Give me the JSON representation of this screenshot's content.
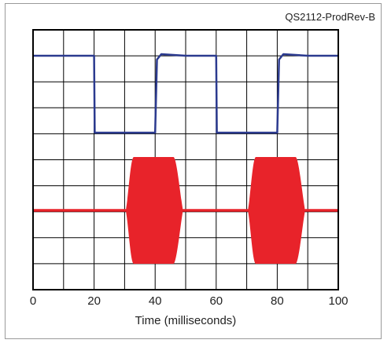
{
  "figure_id": "QS2112-ProdRev-B",
  "chart_data": {
    "type": "line",
    "title": "",
    "xlabel": "Time (milliseconds)",
    "ylabel": "",
    "xlim": [
      0,
      100
    ],
    "x_ticks": [
      "0",
      "20",
      "40",
      "60",
      "80",
      "100"
    ],
    "grid": true,
    "x_grid_step": 10,
    "y_grid_divisions": 10,
    "series": [
      {
        "color": "#2b3a8f",
        "x": [
          0,
          20,
          20.2,
          40,
          40.6,
          42,
          50,
          60,
          60.2,
          80,
          80.6,
          82,
          90,
          100
        ],
        "y": [
          1,
          1,
          0,
          0,
          0.95,
          1.02,
          1,
          1,
          0,
          0,
          0.95,
          1.02,
          1,
          1
        ]
      },
      {
        "color": "#e8232a",
        "bursts": [
          {
            "start": 30.5,
            "full_start": 33,
            "full_end": 46,
            "end": 49
          },
          {
            "start": 70.5,
            "full_start": 73,
            "full_end": 86,
            "end": 89
          }
        ]
      }
    ]
  }
}
